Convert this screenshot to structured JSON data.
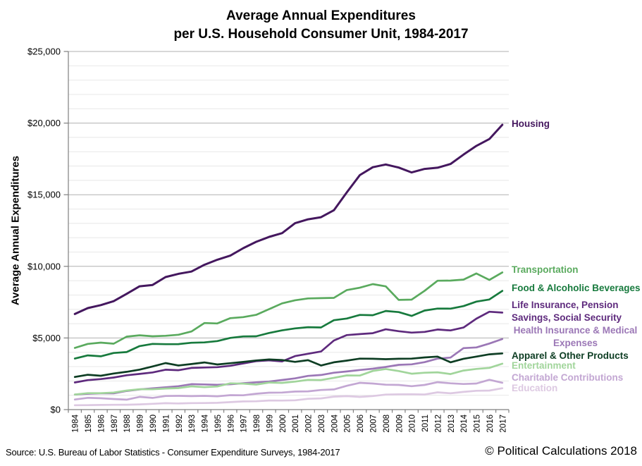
{
  "title": {
    "line1": "Average Annual Expenditures",
    "line2": "per U.S. Household Consumer Unit, 1984-2017"
  },
  "y_axis": {
    "title": "Average Annual Expenditures",
    "tick_labels": [
      "$0",
      "$5,000",
      "$10,000",
      "$15,000",
      "$20,000",
      "$25,000"
    ]
  },
  "footer": {
    "source": "Source: U.S. Bureau of Labor Statistics - Consumer Expenditure  Surveys, 1984-2017",
    "copyright": "© Political Calculations 2018"
  },
  "chart_data": {
    "type": "line",
    "title": "Average Annual Expenditures per U.S. Household Consumer Unit, 1984-2017",
    "xlabel": "",
    "ylabel": "Average Annual Expenditures",
    "ylim": [
      0,
      25000
    ],
    "y_major_step": 5000,
    "y_minor_step": 1000,
    "grid": "horizontal, minor every $1,000 (light), major every $5,000 (darker)",
    "legend_position": "right-edge colored annotations",
    "x": [
      1984,
      1985,
      1986,
      1987,
      1988,
      1989,
      1990,
      1991,
      1992,
      1993,
      1994,
      1995,
      1996,
      1997,
      1998,
      1999,
      2000,
      2001,
      2002,
      2003,
      2004,
      2005,
      2006,
      2007,
      2008,
      2009,
      2010,
      2011,
      2012,
      2013,
      2014,
      2015,
      2016,
      2017
    ],
    "series": [
      {
        "id": "housing",
        "name": "Housing",
        "color": "#44175e",
        "label": {
          "lines": [
            "Housing"
          ],
          "top": 167,
          "align": "left"
        },
        "values": [
          6674,
          7087,
          7292,
          7569,
          8079,
          8609,
          8703,
          9252,
          9477,
          9636,
          10106,
          10465,
          10747,
          11272,
          11713,
          12057,
          12319,
          13011,
          13283,
          13432,
          13918,
          15167,
          16366,
          16920,
          17109,
          16895,
          16557,
          16803,
          16887,
          17148,
          17798,
          18409,
          18886,
          19884
        ]
      },
      {
        "id": "transportation",
        "name": "Transportation",
        "color": "#5aaa5e",
        "label": {
          "lines": [
            "Transportation"
          ],
          "top": 374,
          "align": "left"
        },
        "values": [
          4304,
          4587,
          4674,
          4600,
          5093,
          5187,
          5120,
          5151,
          5228,
          5453,
          6044,
          6014,
          6382,
          6457,
          6616,
          7011,
          7417,
          7633,
          7759,
          7781,
          7801,
          8344,
          8508,
          8758,
          8604,
          7658,
          7677,
          8293,
          8998,
          9004,
          9073,
          9503,
          9049,
          9576
        ]
      },
      {
        "id": "food",
        "name": "Food & Alcoholic Beverages",
        "color": "#177a3d",
        "label": {
          "lines": [
            "Food & Alcoholic Beverages"
          ],
          "top": 400,
          "align": "left"
        },
        "values": [
          3565,
          3783,
          3719,
          3953,
          4017,
          4436,
          4589,
          4568,
          4574,
          4667,
          4689,
          4782,
          5007,
          5110,
          5119,
          5349,
          5530,
          5670,
          5751,
          5731,
          6240,
          6357,
          6608,
          6590,
          6887,
          6807,
          6541,
          6914,
          7050,
          7047,
          7222,
          7538,
          7687,
          8287
        ]
      },
      {
        "id": "life-insurance",
        "name": "Life Insurance, Pension Savings, Social Security",
        "color": "#5e2a7d",
        "label": {
          "lines": [
            "Life Insurance, Pension",
            "Savings, Social Security"
          ],
          "top": 424,
          "align": "left"
        },
        "values": [
          1897,
          2059,
          2131,
          2241,
          2399,
          2489,
          2592,
          2787,
          2750,
          2908,
          2938,
          2964,
          3060,
          3223,
          3381,
          3436,
          3365,
          3737,
          3899,
          4055,
          4823,
          5204,
          5270,
          5336,
          5605,
          5471,
          5373,
          5424,
          5591,
          5528,
          5726,
          6349,
          6831,
          6771
        ]
      },
      {
        "id": "health",
        "name": "Health Insurance & Medical Expenses",
        "color": "#9b77b6",
        "label": {
          "lines": [
            "Health Insurance & Medical",
            "Expenses"
          ],
          "top": 460,
          "align": "center"
        },
        "values": [
          1049,
          1108,
          1135,
          1135,
          1298,
          1407,
          1480,
          1554,
          1634,
          1776,
          1755,
          1732,
          1770,
          1841,
          1903,
          1959,
          2066,
          2182,
          2350,
          2416,
          2574,
          2664,
          2766,
          2853,
          2976,
          3126,
          3157,
          3313,
          3556,
          3631,
          4290,
          4342,
          4612,
          4928
        ]
      },
      {
        "id": "apparel",
        "name": "Apparel & Other Products",
        "color": "#0d3d23",
        "label": {
          "lines": [
            "Apparel & Other Products"
          ],
          "top": 496,
          "align": "left"
        },
        "values": [
          2280,
          2430,
          2360,
          2520,
          2640,
          2790,
          3010,
          3250,
          3080,
          3180,
          3290,
          3150,
          3240,
          3330,
          3430,
          3500,
          3460,
          3330,
          3450,
          3080,
          3300,
          3420,
          3560,
          3550,
          3520,
          3550,
          3560,
          3640,
          3700,
          3300,
          3550,
          3700,
          3860,
          3920
        ]
      },
      {
        "id": "entertainment",
        "name": "Entertainment",
        "color": "#a1d59b",
        "label": {
          "lines": [
            "Entertainment"
          ],
          "top": 510,
          "align": "left"
        },
        "values": [
          1055,
          1146,
          1149,
          1193,
          1329,
          1424,
          1422,
          1472,
          1500,
          1626,
          1567,
          1612,
          1834,
          1813,
          1746,
          1891,
          1863,
          1953,
          2079,
          2060,
          2218,
          2388,
          2376,
          2698,
          2835,
          2693,
          2504,
          2572,
          2605,
          2482,
          2728,
          2842,
          2913,
          3203
        ]
      },
      {
        "id": "charitable",
        "name": "Charitable Contributions",
        "color": "#c3a7d3",
        "label": {
          "lines": [
            "Charitable Contributions"
          ],
          "top": 527,
          "align": "left"
        },
        "values": [
          706,
          821,
          790,
          740,
          693,
          891,
          816,
          950,
          958,
          940,
          960,
          925,
          1007,
          1001,
          1109,
          1181,
          1192,
          1258,
          1277,
          1370,
          1408,
          1663,
          1869,
          1821,
          1737,
          1723,
          1633,
          1721,
          1913,
          1834,
          1788,
          1819,
          2081,
          1873
        ]
      },
      {
        "id": "education",
        "name": "Education",
        "color": "#ddc9e2",
        "label": {
          "lines": [
            "Education"
          ],
          "top": 542,
          "align": "left"
        },
        "values": [
          303,
          312,
          326,
          337,
          342,
          366,
          406,
          450,
          426,
          455,
          460,
          471,
          524,
          571,
          580,
          635,
          632,
          648,
          752,
          783,
          905,
          940,
          888,
          945,
          1046,
          1068,
          1074,
          1051,
          1207,
          1138,
          1236,
          1315,
          1329,
          1491
        ]
      }
    ]
  },
  "layout_colors": {
    "grid_minor": "#e8e8e8",
    "grid_major": "#b0b0b0",
    "axis": "#7f7f7f",
    "text": "#000000"
  }
}
